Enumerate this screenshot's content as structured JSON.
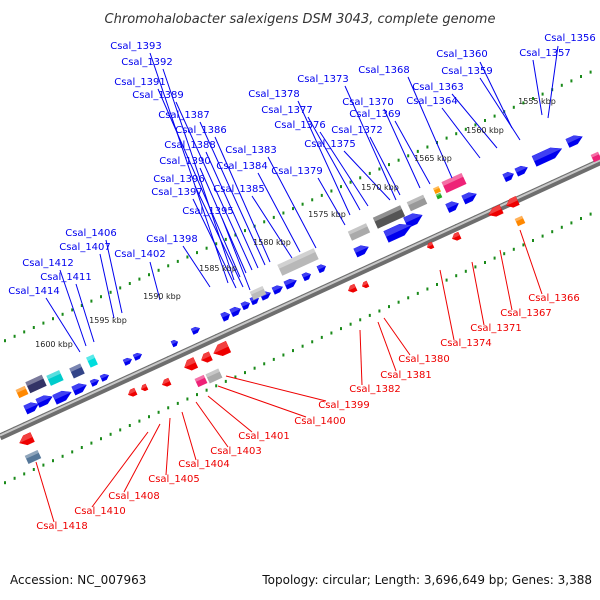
{
  "title": "Chromohalobacter salexigens DSM 3043, complete genome",
  "accession_label": "Accession: NC_007963",
  "topology_label": "Topology: circular; Length: 3,696,649 bp; Genes: 3,388",
  "colors": {
    "forward": "#0000ee",
    "reverse": "#ee0000",
    "backbone": "#888888",
    "tick_dots": "#1a8a1a"
  },
  "ticks": [
    "1555 kbp",
    "1560 kbp",
    "1565 kbp",
    "1570 kbp",
    "1575 kbp",
    "1580 kbp",
    "1585 kbp",
    "1590 kbp",
    "1595 kbp",
    "1600 kbp"
  ],
  "forward_genes": [
    "Csal_1356",
    "Csal_1357",
    "Csal_1359",
    "Csal_1360",
    "Csal_1363",
    "Csal_1364",
    "Csal_1368",
    "Csal_1369",
    "Csal_1370",
    "Csal_1372",
    "Csal_1373",
    "Csal_1375",
    "Csal_1376",
    "Csal_1377",
    "Csal_1378",
    "Csal_1379",
    "Csal_1383",
    "Csal_1384",
    "Csal_1385",
    "Csal_1386",
    "Csal_1387",
    "Csal_1388",
    "Csal_1389",
    "Csal_1390",
    "Csal_1391",
    "Csal_1392",
    "Csal_1393",
    "Csal_1395",
    "Csal_1396",
    "Csal_1397",
    "Csal_1398",
    "Csal_1402",
    "Csal_1406",
    "Csal_1407",
    "Csal_1411",
    "Csal_1412",
    "Csal_1414"
  ],
  "reverse_genes": [
    "Csal_1366",
    "Csal_1367",
    "Csal_1371",
    "Csal_1374",
    "Csal_1380",
    "Csal_1381",
    "Csal_1382",
    "Csal_1399",
    "Csal_1400",
    "Csal_1401",
    "Csal_1403",
    "Csal_1404",
    "Csal_1405",
    "Csal_1408",
    "Csal_1410",
    "Csal_1418"
  ]
}
